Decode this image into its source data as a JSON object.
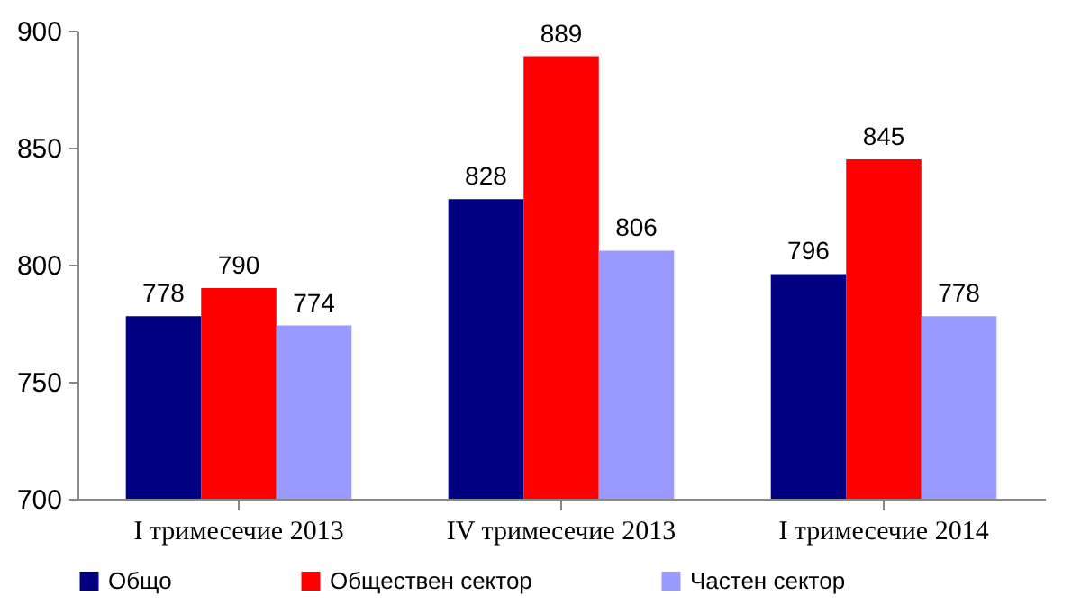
{
  "chart_data": {
    "type": "bar",
    "categories": [
      "I тримесечие 2013",
      "IV тримесечие 2013",
      "I тримесечие 2014"
    ],
    "series": [
      {
        "name": "Общо",
        "color": "#000080",
        "values": [
          778,
          828,
          796
        ]
      },
      {
        "name": "Обществен сектор",
        "color": "#ff0000",
        "values": [
          790,
          889,
          845
        ]
      },
      {
        "name": "Частен сектор",
        "color": "#9999ff",
        "values": [
          774,
          806,
          778
        ]
      }
    ],
    "ylim": [
      700,
      900
    ],
    "yticks": [
      700,
      750,
      800,
      850,
      900
    ],
    "data_labels": true,
    "legend": "bottom",
    "grid": false
  }
}
